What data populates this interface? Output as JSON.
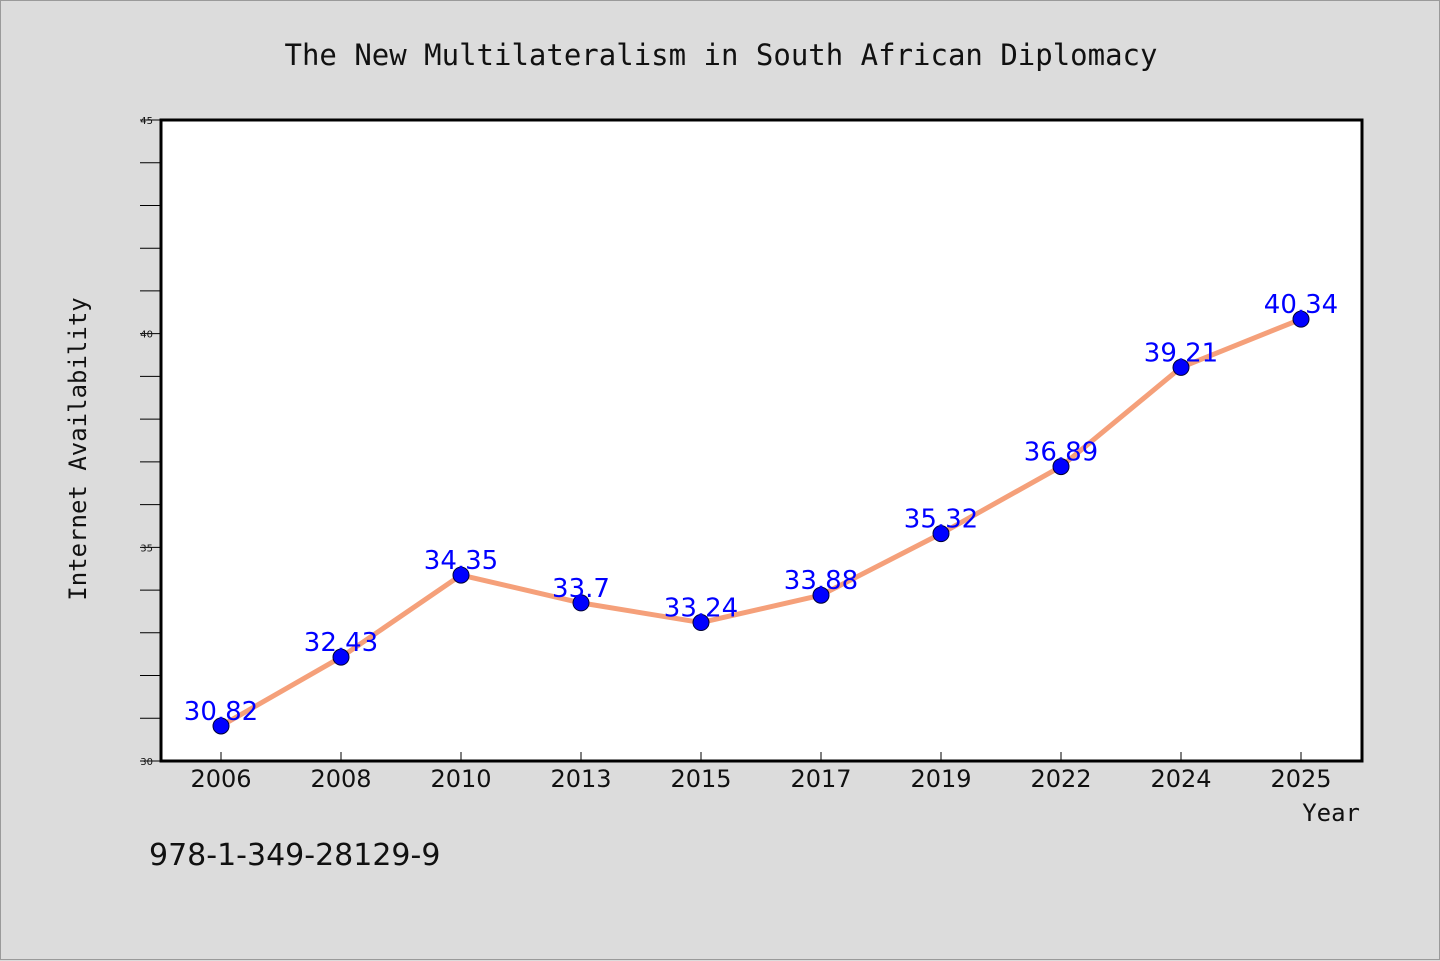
{
  "colors": {
    "background": "#dcdcdc",
    "plot_background": "#ffffff",
    "line": "#f5a07a",
    "marker": "#0000ff",
    "data_label": "#0000ff",
    "axis": "#000000"
  },
  "footer_text": "978-1-349-28129-9",
  "chart_data": {
    "type": "line",
    "title": "The New Multilateralism in South African Diplomacy",
    "xlabel": "Year",
    "ylabel": "Internet Availability",
    "categories": [
      "2006",
      "2008",
      "2010",
      "2013",
      "2015",
      "2017",
      "2019",
      "2022",
      "2024",
      "2025"
    ],
    "series": [
      {
        "values": [
          30.82,
          32.43,
          34.35,
          33.7,
          33.24,
          33.88,
          35.32,
          36.89,
          39.21,
          40.34
        ],
        "labels": [
          "30.82",
          "32.43",
          "34.35",
          "33.7",
          "33.24",
          "33.88",
          "35.32",
          "36.89",
          "39.21",
          "40.34"
        ]
      }
    ],
    "ylim": [
      30,
      45
    ],
    "yticks": [
      "30",
      "35",
      "40",
      "45"
    ],
    "y_minor_step": 1,
    "grid": false,
    "legend": "none"
  }
}
